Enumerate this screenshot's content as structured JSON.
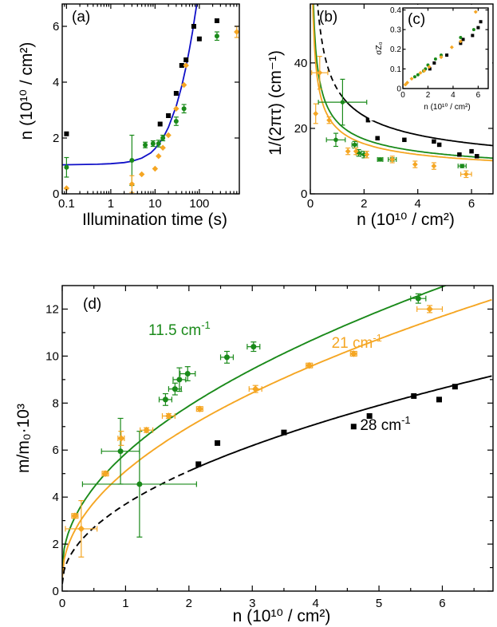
{
  "chart_data": [
    {
      "id": "a",
      "type": "scatter",
      "panel_label": "(a)",
      "xscale": "log",
      "xlabel": "Illumination time (s)",
      "ylabel": "n (10¹⁰ / cm²)",
      "xlim": [
        0.08,
        800
      ],
      "ylim": [
        0,
        6.8
      ],
      "xtick_labels": [
        "0.1",
        "1",
        "10",
        "100"
      ],
      "xticks": [
        0.1,
        1,
        10,
        100
      ],
      "ytick_labels": [
        "0",
        "2",
        "4",
        "6"
      ],
      "yticks": [
        0,
        2,
        4,
        6
      ],
      "series": [
        {
          "name": "28 cm⁻¹",
          "color": "#000000",
          "marker": "square",
          "x": [
            0.1,
            13,
            20,
            30,
            40,
            50,
            75,
            100,
            250
          ],
          "y": [
            2.15,
            2.5,
            2.8,
            3.6,
            4.6,
            4.8,
            6.0,
            5.55,
            6.2
          ]
        },
        {
          "name": "11.5 cm⁻¹",
          "color": "#1a8a1a",
          "marker": "circle",
          "x": [
            0.1,
            3,
            6,
            9,
            12,
            15,
            30,
            45,
            250
          ],
          "y": [
            0.95,
            1.2,
            1.75,
            1.8,
            1.8,
            2.0,
            2.6,
            3.05,
            5.65
          ],
          "yerr": [
            0.35,
            0.9,
            0.1,
            0.1,
            0.12,
            0.1,
            0.15,
            0.15,
            0.15
          ]
        },
        {
          "name": "21 cm⁻¹",
          "color": "#f5a623",
          "marker": "diamond",
          "x": [
            0.1,
            3,
            5,
            10,
            12,
            15,
            20,
            30,
            45,
            50,
            700
          ],
          "y": [
            0.2,
            0.35,
            0.7,
            0.9,
            1.35,
            1.65,
            2.1,
            3.05,
            3.9,
            4.6,
            5.8
          ],
          "yerr": [
            0,
            0.3,
            0,
            0,
            0,
            0,
            0,
            0,
            0,
            0,
            0.2
          ]
        }
      ],
      "fit": {
        "name": "fit",
        "color": "#1010c8",
        "x": [
          0.08,
          0.5,
          1,
          2,
          3,
          5,
          8,
          10,
          15,
          20,
          30,
          40,
          50,
          60,
          70,
          80,
          90
        ],
        "y": [
          1.04,
          1.06,
          1.08,
          1.12,
          1.17,
          1.28,
          1.47,
          1.62,
          1.99,
          2.38,
          3.14,
          3.86,
          4.55,
          5.2,
          5.8,
          6.4,
          6.9
        ]
      }
    },
    {
      "id": "b",
      "type": "scatter",
      "panel_label": "(b)",
      "xlabel": "n (10¹⁰ / cm²)",
      "ylabel": "1/(2πτ) (cm⁻¹)",
      "xlim": [
        0,
        6.8
      ],
      "ylim": [
        0,
        58
      ],
      "xtick_labels": [
        "0",
        "2",
        "4",
        "6"
      ],
      "xticks": [
        0,
        2,
        4,
        6
      ],
      "ytick_labels": [
        "0",
        "20",
        "40"
      ],
      "yticks": [
        0,
        20,
        40
      ],
      "series": [
        {
          "name": "28 cm⁻¹",
          "color": "#000000",
          "marker": "square",
          "x": [
            2.15,
            2.5,
            3.5,
            4.6,
            4.8,
            5.55,
            6.0,
            6.2
          ],
          "y": [
            22.5,
            17.0,
            16.5,
            16.0,
            15.0,
            12.0,
            13.0,
            11.5
          ]
        },
        {
          "name": "11.5 cm⁻¹",
          "color": "#1a8a1a",
          "marker": "circle",
          "x": [
            0.95,
            1.2,
            1.65,
            1.8,
            2.0,
            2.6,
            3.05,
            5.65
          ],
          "y": [
            16.5,
            28.0,
            15.0,
            12.5,
            12.0,
            10.5,
            10.5,
            8.5
          ],
          "xerr": [
            0.35,
            0.9,
            0.1,
            0.1,
            0.12,
            0.1,
            0.15,
            0.15
          ],
          "yerr": [
            2,
            7,
            1,
            1,
            1,
            0.5,
            0.5,
            0.5
          ]
        },
        {
          "name": "21 cm⁻¹",
          "color": "#f5a623",
          "marker": "diamond",
          "x": [
            0.2,
            0.35,
            0.7,
            1.4,
            1.7,
            2.1,
            3.05,
            3.9,
            4.6,
            5.8
          ],
          "y": [
            24.5,
            37.0,
            22.5,
            13.0,
            13.0,
            12.0,
            10.5,
            9.0,
            8.5,
            6.0
          ],
          "xerr": [
            0,
            0.3,
            0,
            0,
            0,
            0,
            0,
            0,
            0,
            0.2
          ],
          "yerr": [
            3,
            5,
            1,
            1,
            1,
            1,
            1,
            1,
            1,
            1
          ]
        }
      ],
      "curves": [
        {
          "color": "#000000",
          "dash": true,
          "solid_from": 1.2,
          "coef": 28
        },
        {
          "color": "#1a8a1a",
          "dash": false,
          "coef": 18
        },
        {
          "color": "#f5a623",
          "dash": false,
          "coef": 16
        }
      ]
    },
    {
      "id": "c",
      "type": "scatter",
      "panel_label": "(c)",
      "inset": true,
      "xlabel": "n (10¹⁰ / cm²)",
      "ylabel": "σZ₀",
      "xlim": [
        0,
        6.8
      ],
      "ylim": [
        0,
        0.41
      ],
      "xtick_labels": [
        "0",
        "2",
        "4",
        "6"
      ],
      "xticks": [
        0,
        2,
        4,
        6
      ],
      "ytick_labels": [
        "0",
        "0.1",
        "0.2",
        "0.3",
        "0.4"
      ],
      "yticks": [
        0,
        0.1,
        0.2,
        0.3,
        0.4
      ],
      "series": [
        {
          "name": "28 cm⁻¹",
          "color": "#000000",
          "marker": "square",
          "x": [
            2.15,
            2.5,
            3.5,
            4.6,
            4.8,
            5.55,
            6.0,
            6.2
          ],
          "y": [
            0.1,
            0.13,
            0.17,
            0.23,
            0.25,
            0.27,
            0.31,
            0.34
          ]
        },
        {
          "name": "11.5 cm⁻¹",
          "color": "#1a8a1a",
          "marker": "circle",
          "x": [
            0.95,
            1.2,
            1.65,
            1.8,
            2.0,
            2.6,
            3.05,
            4.6,
            5.65
          ],
          "y": [
            0.06,
            0.07,
            0.09,
            0.1,
            0.12,
            0.15,
            0.17,
            0.26,
            0.3
          ]
        },
        {
          "name": "21 cm⁻¹",
          "color": "#f5a623",
          "marker": "diamond",
          "x": [
            0.2,
            0.35,
            0.7,
            1.4,
            1.7,
            2.1,
            3.05,
            3.9,
            4.6,
            5.8
          ],
          "y": [
            0.02,
            0.03,
            0.05,
            0.08,
            0.09,
            0.11,
            0.16,
            0.21,
            0.24,
            0.39
          ]
        }
      ]
    },
    {
      "id": "d",
      "type": "scatter",
      "panel_label": "(d)",
      "xlabel": "n (10¹⁰ / cm²)",
      "ylabel": "m/m₀·10³",
      "xlim": [
        0,
        6.8
      ],
      "ylim": [
        0,
        13
      ],
      "xtick_labels": [
        "0",
        "1",
        "2",
        "3",
        "4",
        "5",
        "6"
      ],
      "xticks": [
        0,
        1,
        2,
        3,
        4,
        5,
        6
      ],
      "ytick_labels": [
        "0",
        "2",
        "4",
        "6",
        "8",
        "10",
        "12"
      ],
      "yticks": [
        0,
        2,
        4,
        6,
        8,
        10,
        12
      ],
      "annotations": [
        {
          "text": "11.5 cm",
          "sup": "-1",
          "color": "#1a8a1a",
          "x": 1.85,
          "y": 10.9
        },
        {
          "text": "21 cm",
          "sup": "-1",
          "color": "#f5a623",
          "x": 4.65,
          "y": 10.35
        },
        {
          "text": "28 cm",
          "sup": "-1",
          "color": "#000000",
          "x": 5.1,
          "y": 6.85
        }
      ],
      "series": [
        {
          "name": "28 cm⁻¹",
          "color": "#000000",
          "marker": "square",
          "x": [
            2.15,
            2.45,
            3.5,
            4.6,
            4.85,
            5.55,
            5.95,
            6.2
          ],
          "y": [
            5.4,
            6.3,
            6.75,
            7.0,
            7.45,
            8.3,
            8.15,
            8.7
          ]
        },
        {
          "name": "11.5 cm⁻¹",
          "color": "#1a8a1a",
          "marker": "circle",
          "x": [
            0.92,
            1.22,
            1.63,
            1.78,
            1.85,
            1.98,
            2.6,
            3.02,
            5.62
          ],
          "y": [
            5.95,
            4.55,
            8.15,
            8.6,
            9.0,
            9.25,
            9.95,
            10.4,
            12.45
          ],
          "xerr": [
            0.3,
            0.9,
            0.1,
            0.1,
            0.1,
            0.12,
            0.1,
            0.1,
            0.12
          ],
          "yerr": [
            1.4,
            2.25,
            0.25,
            0.25,
            0.5,
            0.3,
            0.25,
            0.2,
            0.2
          ]
        },
        {
          "name": "21 cm⁻¹",
          "color": "#f5a623",
          "marker": "diamond",
          "x": [
            0.2,
            0.3,
            0.68,
            0.93,
            1.33,
            1.68,
            2.17,
            3.05,
            3.9,
            4.6,
            5.8
          ],
          "y": [
            3.2,
            2.65,
            5.0,
            6.5,
            6.85,
            7.45,
            7.75,
            8.6,
            9.6,
            10.1,
            12.0
          ],
          "xerr": [
            0.05,
            0.25,
            0.05,
            0.05,
            0.1,
            0.1,
            0.05,
            0.1,
            0.05,
            0.05,
            0.2
          ],
          "yerr": [
            0.1,
            1.2,
            0.1,
            0.3,
            0.1,
            0.1,
            0.1,
            0.15,
            0.1,
            0.1,
            0.15
          ]
        }
      ],
      "curves": [
        {
          "color": "#1a8a1a",
          "dash": false,
          "a": 0.95,
          "b": 4.9
        },
        {
          "color": "#f5a623",
          "dash": false,
          "a": 0.55,
          "b": 4.55
        },
        {
          "color": "#000000",
          "dash": true,
          "solid_from": 2.0,
          "a": 0.3,
          "b": 3.4
        }
      ]
    }
  ]
}
